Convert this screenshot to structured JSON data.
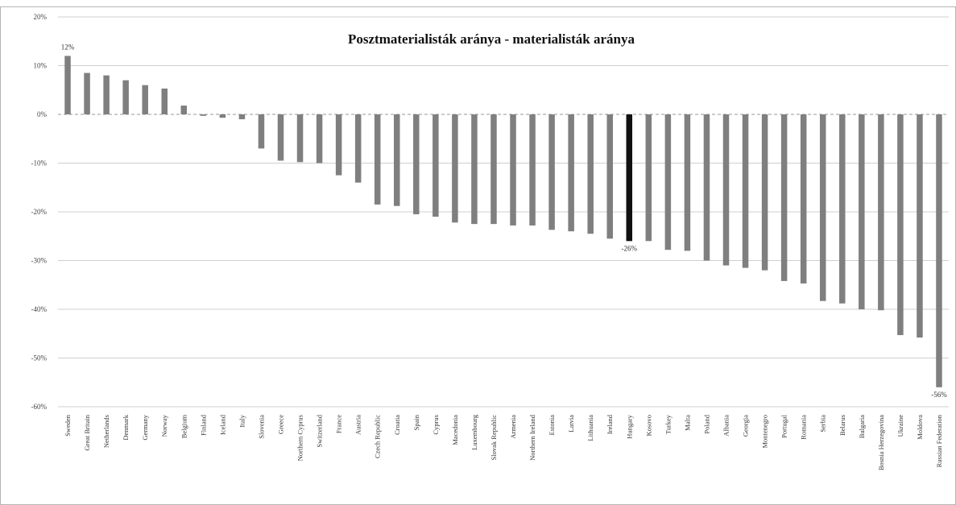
{
  "chart_data": {
    "type": "bar",
    "title": "Posztmaterialisták aránya - materialisták aránya",
    "xlabel": "",
    "ylabel": "",
    "ylim": [
      -60,
      20
    ],
    "y_ticks": [
      "20%",
      "10%",
      "0%",
      "-10%",
      "-20%",
      "-30%",
      "-40%",
      "-50%",
      "-60%"
    ],
    "y_tick_values": [
      20,
      10,
      0,
      -10,
      -20,
      -30,
      -40,
      -50,
      -60
    ],
    "grid": true,
    "legend": "none",
    "categories": [
      "Sweden",
      "Great Britain",
      "Netherlands",
      "Denmark",
      "Germany",
      "Norway",
      "Belgium",
      "Finland",
      "Iceland",
      "Italy",
      "Slovenia",
      "Greece",
      "Northern Cyprus",
      "Switzerland",
      "France",
      "Austria",
      "Czech Republic",
      "Croatia",
      "Spain",
      "Cyprus",
      "Macedonia",
      "Luxembourg",
      "Slovak Republic",
      "Armenia",
      "Northern Ireland",
      "Estonia",
      "Latvia",
      "Lithuania",
      "Ireland",
      "Hungary",
      "Kosovo",
      "Turkey",
      "Malta",
      "Poland",
      "Albania",
      "Georgia",
      "Montenegro",
      "Portugal",
      "Romania",
      "Serbia",
      "Belarus",
      "Bulgaria",
      "Bosnia Herzegovina",
      "Ukraine",
      "Moldova",
      "Russian Federation"
    ],
    "values": [
      12,
      8.5,
      8,
      7,
      6,
      5.3,
      1.8,
      -0.3,
      -0.7,
      -1,
      -7,
      -9.5,
      -9.8,
      -10,
      -12.5,
      -14,
      -18.5,
      -18.8,
      -20.5,
      -21,
      -22.2,
      -22.5,
      -22.5,
      -22.8,
      -22.8,
      -23.7,
      -24,
      -24.5,
      -25.5,
      -26,
      -26,
      -27.8,
      -28,
      -30,
      -31,
      -31.5,
      -32,
      -34.2,
      -34.7,
      -38.3,
      -38.8,
      -40,
      -40.2,
      -45.3,
      -45.8,
      -56
    ],
    "highlight_category": "Hungary",
    "data_labels": [
      {
        "category": "Sweden",
        "text": "12%"
      },
      {
        "category": "Hungary",
        "text": "-26%"
      },
      {
        "category": "Russian Federation",
        "text": "-56%"
      }
    ],
    "colors": {
      "bar": "#7f7f7f",
      "highlight": "#111111",
      "grid": "#cfcfcf",
      "axis": "#9a9a9a",
      "border": "#b5b5b5"
    }
  }
}
